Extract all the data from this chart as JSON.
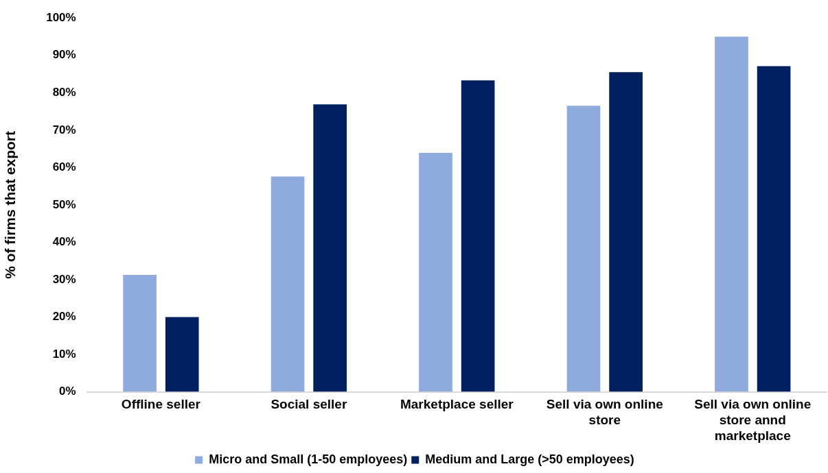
{
  "chart_data": {
    "type": "bar",
    "ylabel": "% of firms that export",
    "categories": [
      "Offline seller",
      "Social seller",
      "Marketplace seller",
      "Sell via own online store",
      "Sell via own online store annd marketplace"
    ],
    "series": [
      {
        "name": "Micro and Small (1-50 employees)",
        "color": "#8faadc",
        "values": [
          31.3,
          57.6,
          63.9,
          76.5,
          95.0
        ]
      },
      {
        "name": "Medium and Large (>50 employees)",
        "color": "#002060",
        "values": [
          20.0,
          76.9,
          83.3,
          85.5,
          87.1
        ]
      }
    ],
    "ylim": [
      0,
      100
    ],
    "yticks": [
      {
        "value": 0,
        "label": "0%"
      },
      {
        "value": 10,
        "label": "10%"
      },
      {
        "value": 20,
        "label": "20%"
      },
      {
        "value": 30,
        "label": "30%"
      },
      {
        "value": 40,
        "label": "40%"
      },
      {
        "value": 50,
        "label": "50%"
      },
      {
        "value": 60,
        "label": "60%"
      },
      {
        "value": 70,
        "label": "70%"
      },
      {
        "value": 80,
        "label": "80%"
      },
      {
        "value": 90,
        "label": "90%"
      },
      {
        "value": 100,
        "label": "100%"
      }
    ],
    "grid": false,
    "legend": "bottom"
  }
}
